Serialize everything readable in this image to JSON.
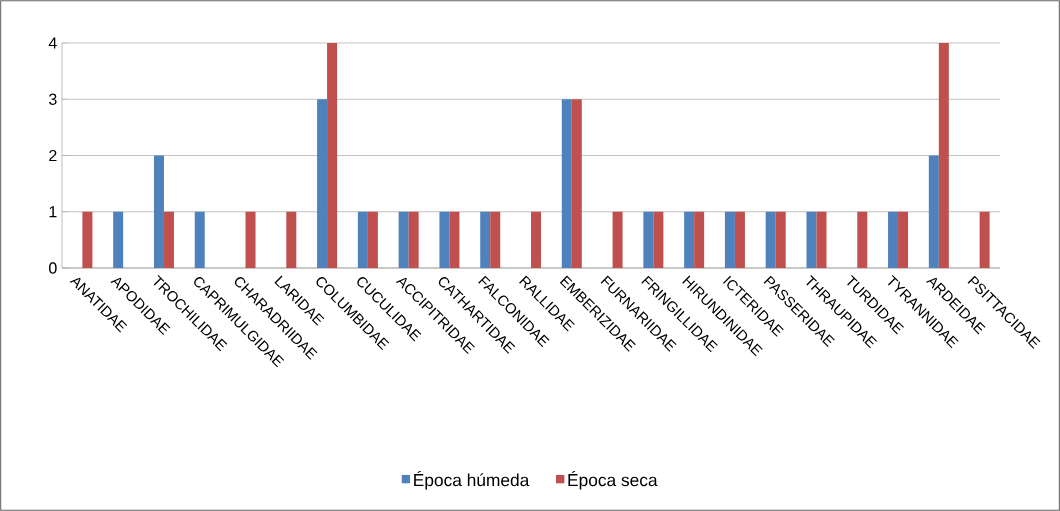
{
  "chart_data": {
    "type": "bar",
    "categories": [
      "ANATIDAE",
      "APODIDAE",
      "TROCHILIDAE",
      "CAPRIMULGIDAE",
      "CHARADRIIDAE",
      "LARIDAE",
      "COLUMBIDAE",
      "CUCULIDAE",
      "ACCIPITRIDAE",
      "CATHARTIDAE",
      "FALCONIDAE",
      "RALLIDAE",
      "EMBERIZIDAE",
      "FURNARIIDAE",
      "FRINGILLIDAE",
      "HIRUNDINIDAE",
      "ICTERIDAE",
      "PASSERIDAE",
      "THRAUPIDAE",
      "TURDIDAE",
      "TYRANNIDAE",
      "ARDEIDAE",
      "PSITTACIDAE"
    ],
    "series": [
      {
        "name": "Época húmeda",
        "color": "#4f81bd",
        "values": [
          0,
          1,
          2,
          1,
          0,
          0,
          3,
          1,
          1,
          1,
          1,
          0,
          3,
          0,
          1,
          1,
          1,
          1,
          1,
          0,
          1,
          2,
          0
        ]
      },
      {
        "name": "Época seca",
        "color": "#c0504d",
        "values": [
          1,
          0,
          1,
          0,
          1,
          1,
          4,
          1,
          1,
          1,
          1,
          1,
          3,
          1,
          1,
          1,
          1,
          1,
          1,
          1,
          1,
          4,
          1
        ]
      }
    ],
    "ylim": [
      0,
      4
    ],
    "yticks": [
      0,
      1,
      2,
      3,
      4
    ],
    "grid": "y",
    "legend": "bottom"
  }
}
